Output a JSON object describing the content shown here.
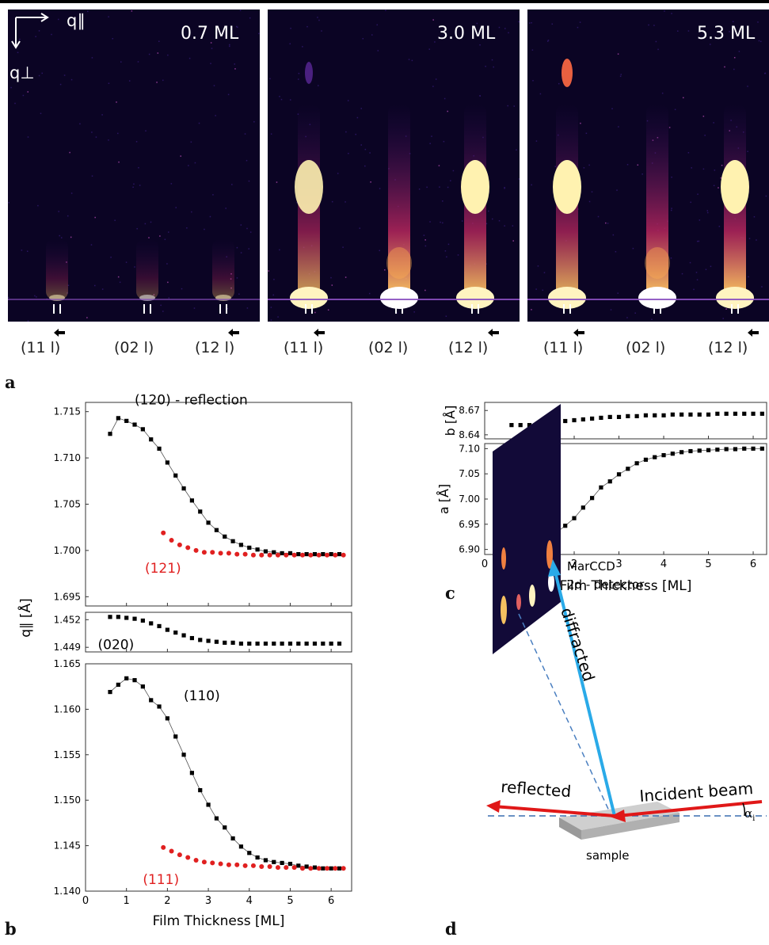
{
  "panel_a": {
    "letter": "a",
    "axis_parallel": "q∥",
    "axis_perp": "q⊥",
    "panels": [
      {
        "label": "0.7 ML"
      },
      {
        "label": "3.0 ML"
      },
      {
        "label": "5.3 ML"
      }
    ],
    "reflection_labels": [
      "(11 l)",
      "(02 l)",
      "(12 l)"
    ]
  },
  "panel_b": {
    "letter": "b"
  },
  "panel_c": {
    "letter": "c"
  },
  "panel_d": {
    "letter": "d",
    "detector": "MarCCD",
    "detector_sub": "2d - detector",
    "diffracted": "diffracted",
    "reflected": "reflected",
    "incident": "Incident beam",
    "alpha": "α",
    "alpha_sub": "i",
    "sample": "sample"
  },
  "chart_data": [
    {
      "type": "scatter",
      "panel": "b-top",
      "ylim": [
        1.694,
        1.716
      ],
      "xlim": [
        0,
        6.5
      ],
      "annotations": [
        "(120) - reflection",
        "(121)"
      ],
      "series": [
        {
          "name": "(120) - reflection",
          "color": "#000000",
          "marker": "square",
          "line": true,
          "x": [
            0.6,
            0.8,
            1.0,
            1.2,
            1.4,
            1.6,
            1.8,
            2.0,
            2.2,
            2.4,
            2.6,
            2.8,
            3.0,
            3.2,
            3.4,
            3.6,
            3.8,
            4.0,
            4.2,
            4.4,
            4.6,
            4.8,
            5.0,
            5.2,
            5.4,
            5.6,
            5.8,
            6.0,
            6.2
          ],
          "y": [
            1.7126,
            1.7143,
            1.714,
            1.7136,
            1.7131,
            1.712,
            1.711,
            1.7095,
            1.7081,
            1.7067,
            1.7054,
            1.7042,
            1.703,
            1.7022,
            1.7015,
            1.701,
            1.7006,
            1.7003,
            1.7001,
            1.6999,
            1.6998,
            1.6997,
            1.6997,
            1.6996,
            1.6996,
            1.6996,
            1.6996,
            1.6996,
            1.6996
          ]
        },
        {
          "name": "(121)",
          "color": "#e02020",
          "marker": "circle",
          "line": false,
          "x": [
            1.9,
            2.1,
            2.3,
            2.5,
            2.7,
            2.9,
            3.1,
            3.3,
            3.5,
            3.7,
            3.9,
            4.1,
            4.3,
            4.5,
            4.7,
            4.9,
            5.1,
            5.3,
            5.5,
            5.7,
            5.9,
            6.1,
            6.3
          ],
          "y": [
            1.7019,
            1.7011,
            1.7006,
            1.7003,
            1.7,
            1.6998,
            1.6998,
            1.6997,
            1.6997,
            1.6996,
            1.6996,
            1.6995,
            1.6995,
            1.6995,
            1.6995,
            1.6995,
            1.6995,
            1.6995,
            1.6995,
            1.6995,
            1.6995,
            1.6995,
            1.6995
          ]
        }
      ]
    },
    {
      "type": "scatter",
      "panel": "b-middle",
      "ylim": [
        1.4485,
        1.4528
      ],
      "xlim": [
        0,
        6.5
      ],
      "annotations": [
        "(020)"
      ],
      "series": [
        {
          "name": "(020)",
          "color": "#000000",
          "marker": "square",
          "line": false,
          "x": [
            0.6,
            0.8,
            1.0,
            1.2,
            1.4,
            1.6,
            1.8,
            2.0,
            2.2,
            2.4,
            2.6,
            2.8,
            3.0,
            3.2,
            3.4,
            3.6,
            3.8,
            4.0,
            4.2,
            4.4,
            4.6,
            4.8,
            5.0,
            5.2,
            5.4,
            5.6,
            5.8,
            6.0,
            6.2
          ],
          "y": [
            1.4523,
            1.4523,
            1.4522,
            1.4521,
            1.4519,
            1.4516,
            1.4513,
            1.4509,
            1.4506,
            1.4503,
            1.45,
            1.4498,
            1.4497,
            1.4496,
            1.4495,
            1.4495,
            1.4494,
            1.4494,
            1.4494,
            1.4494,
            1.4494,
            1.4494,
            1.4494,
            1.4494,
            1.4494,
            1.4494,
            1.4494,
            1.4494,
            1.4494
          ]
        }
      ]
    },
    {
      "type": "scatter",
      "panel": "b-bottom",
      "ylim": [
        1.14,
        1.165
      ],
      "xlim": [
        0,
        6.5
      ],
      "yticks": [
        "1.140",
        "1.145",
        "1.150",
        "1.155",
        "1.160",
        "1.165"
      ],
      "xticks": [
        "0",
        "1",
        "2",
        "3",
        "4",
        "5",
        "6"
      ],
      "xlabel": "Film Thickness [ML]",
      "ylabel": "q∥ [Å]",
      "annotations": [
        "(110)",
        "(111)"
      ],
      "series": [
        {
          "name": "(110)",
          "color": "#000000",
          "marker": "square",
          "line": true,
          "x": [
            0.6,
            0.8,
            1.0,
            1.2,
            1.4,
            1.6,
            1.8,
            2.0,
            2.2,
            2.4,
            2.6,
            2.8,
            3.0,
            3.2,
            3.4,
            3.6,
            3.8,
            4.0,
            4.2,
            4.4,
            4.6,
            4.8,
            5.0,
            5.2,
            5.4,
            5.6,
            5.8,
            6.0,
            6.2
          ],
          "y": [
            1.1619,
            1.1627,
            1.1634,
            1.1632,
            1.1625,
            1.161,
            1.1603,
            1.159,
            1.157,
            1.155,
            1.153,
            1.1511,
            1.1495,
            1.148,
            1.147,
            1.1458,
            1.1449,
            1.1442,
            1.1437,
            1.1434,
            1.1432,
            1.1431,
            1.143,
            1.1428,
            1.1427,
            1.1426,
            1.1425,
            1.1425,
            1.1425
          ]
        },
        {
          "name": "(111)",
          "color": "#e02020",
          "marker": "circle",
          "line": false,
          "x": [
            1.9,
            2.1,
            2.3,
            2.5,
            2.7,
            2.9,
            3.1,
            3.3,
            3.5,
            3.7,
            3.9,
            4.1,
            4.3,
            4.5,
            4.7,
            4.9,
            5.1,
            5.3,
            5.5,
            5.7,
            5.9,
            6.1,
            6.3
          ],
          "y": [
            1.1448,
            1.1444,
            1.144,
            1.1437,
            1.1434,
            1.1432,
            1.1431,
            1.143,
            1.1429,
            1.1429,
            1.1428,
            1.1428,
            1.1427,
            1.1427,
            1.1426,
            1.1426,
            1.1426,
            1.1425,
            1.1425,
            1.1425,
            1.1425,
            1.1425,
            1.1425
          ]
        }
      ]
    },
    {
      "type": "scatter",
      "panel": "c-top",
      "ylabel": "b [Å]",
      "ylim": [
        8.635,
        8.68
      ],
      "xlim": [
        0,
        6.3
      ],
      "yticks": [
        "8.64",
        "8.67"
      ],
      "series": [
        {
          "name": "b",
          "color": "#000000",
          "marker": "square",
          "line": false,
          "x": [
            0.6,
            0.8,
            1.0,
            1.2,
            1.4,
            1.6,
            1.8,
            2.0,
            2.2,
            2.4,
            2.6,
            2.8,
            3.0,
            3.2,
            3.4,
            3.6,
            3.8,
            4.0,
            4.2,
            4.4,
            4.6,
            4.8,
            5.0,
            5.2,
            5.4,
            5.6,
            5.8,
            6.0,
            6.2
          ],
          "y": [
            8.652,
            8.652,
            8.652,
            8.653,
            8.654,
            8.656,
            8.657,
            8.658,
            8.659,
            8.66,
            8.661,
            8.662,
            8.662,
            8.663,
            8.663,
            8.664,
            8.664,
            8.664,
            8.665,
            8.665,
            8.665,
            8.665,
            8.665,
            8.666,
            8.666,
            8.666,
            8.666,
            8.666,
            8.666
          ]
        }
      ]
    },
    {
      "type": "line",
      "panel": "c-bottom",
      "ylabel": "a [Å]",
      "xlabel": "Film Thickness [ML]",
      "ylim": [
        6.89,
        7.11
      ],
      "xlim": [
        0,
        6.3
      ],
      "yticks": [
        "6.90",
        "6.95",
        "7.00",
        "7.05",
        "7.10"
      ],
      "xticks": [
        "0",
        "1",
        "2",
        "3",
        "4",
        "5",
        "6"
      ],
      "series": [
        {
          "name": "a",
          "color": "#000000",
          "marker": "square",
          "line": true,
          "x": [
            0.6,
            0.8,
            1.0,
            1.2,
            1.4,
            1.6,
            1.8,
            2.0,
            2.2,
            2.4,
            2.6,
            2.8,
            3.0,
            3.2,
            3.4,
            3.6,
            3.8,
            4.0,
            4.2,
            4.4,
            4.6,
            4.8,
            5.0,
            5.2,
            5.4,
            5.6,
            5.8,
            6.0,
            6.2
          ],
          "y": [
            6.925,
            6.906,
            6.908,
            6.911,
            6.919,
            6.933,
            6.947,
            6.962,
            6.983,
            7.002,
            7.023,
            7.035,
            7.049,
            7.06,
            7.071,
            7.078,
            7.083,
            7.087,
            7.09,
            7.093,
            7.095,
            7.096,
            7.097,
            7.098,
            7.099,
            7.099,
            7.1,
            7.1,
            7.1
          ]
        }
      ]
    }
  ]
}
